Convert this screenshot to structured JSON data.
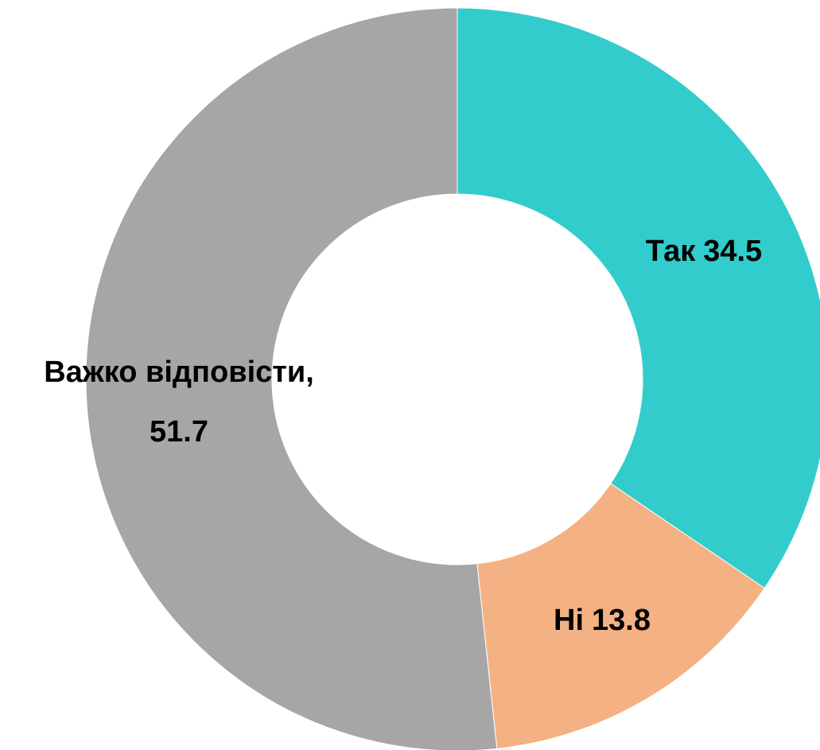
{
  "chart_data": {
    "type": "donut",
    "categories": [
      "Так",
      "Ні",
      "Важко відповісти,"
    ],
    "values": [
      34.5,
      13.8,
      51.7
    ],
    "colors": [
      "#33CCCC",
      "#F4B183",
      "#A6A6A6"
    ]
  }
}
